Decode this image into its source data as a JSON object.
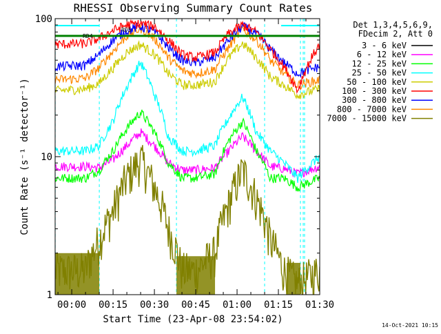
{
  "chart_data": {
    "type": "line",
    "title": "RHESSI Observing Summary Count Rates",
    "xlabel": "Start Time (23-Apr-08 23:54:02)",
    "ylabel": "Count Rate (s⁻¹ detector⁻¹)",
    "yscale": "log",
    "ylim": [
      1,
      100
    ],
    "xlim_minutes": [
      -6.03,
      90
    ],
    "x_tick_labels": [
      "00:00",
      "00:15",
      "00:30",
      "00:45",
      "01:00",
      "01:15",
      "01:30"
    ],
    "y_tick_labels": [
      "1",
      "10",
      "100"
    ],
    "legend_header": [
      "Det 1,3,4,5,6,9,",
      "FDecim 2, Att 0"
    ],
    "legend_placement": "top-right outside plot",
    "grid": false,
    "series": [
      {
        "name": "3 - 6 keV",
        "color": "#000000"
      },
      {
        "name": "6 - 12 keV",
        "color": "#ff00ff"
      },
      {
        "name": "12 - 25 keV",
        "color": "#00ff00"
      },
      {
        "name": "25 - 50 keV",
        "color": "#00ffff"
      },
      {
        "name": "50 - 100 keV",
        "color": "#cccc00"
      },
      {
        "name": "100 - 300 keV",
        "color": "#ff0000"
      },
      {
        "name": "300 - 800 keV",
        "color": "#0000ff"
      },
      {
        "name": "800 - 7000 keV",
        "color": "#ff8800"
      },
      {
        "name": "7000 - 15000 keV",
        "color": "#808000"
      }
    ],
    "profiles": {
      "6 - 12 keV": {
        "x": [
          -6,
          5,
          10,
          15,
          20,
          25,
          30,
          35,
          40,
          45,
          52,
          57,
          62,
          67,
          72,
          77,
          82,
          90
        ],
        "y": [
          8.5,
          8.5,
          8.3,
          9.5,
          12,
          15,
          12,
          9,
          8,
          8,
          8.3,
          11,
          14,
          11,
          8.5,
          8.2,
          7.5,
          8.5
        ]
      },
      "12 - 25 keV": {
        "x": [
          -6,
          5,
          10,
          15,
          20,
          25,
          30,
          35,
          40,
          45,
          52,
          57,
          62,
          67,
          72,
          77,
          82,
          90
        ],
        "y": [
          7,
          7,
          8,
          11,
          16,
          21,
          15,
          9,
          7,
          7,
          7.5,
          13,
          18,
          11,
          7,
          7,
          6,
          7
        ]
      },
      "25 - 50 keV": {
        "x": [
          -6,
          5,
          10,
          15,
          20,
          25,
          30,
          35,
          40,
          45,
          52,
          57,
          62,
          67,
          72,
          77,
          82,
          90
        ],
        "y": [
          11,
          11,
          12,
          18,
          32,
          48,
          28,
          14,
          11,
          11,
          12,
          19,
          27,
          15,
          11,
          9,
          7,
          10
        ]
      },
      "50 - 100 keV": {
        "x": [
          -6,
          5,
          10,
          15,
          20,
          25,
          30,
          35,
          40,
          45,
          52,
          57,
          62,
          67,
          72,
          77,
          82,
          90
        ],
        "y": [
          30,
          31,
          34,
          44,
          57,
          65,
          55,
          40,
          33,
          33,
          35,
          52,
          66,
          52,
          38,
          33,
          28,
          31
        ]
      },
      "100 - 300 keV": {
        "x": [
          -6,
          5,
          10,
          15,
          20,
          25,
          30,
          35,
          40,
          45,
          52,
          57,
          62,
          67,
          72,
          77,
          82,
          90
        ],
        "y": [
          65,
          66,
          72,
          82,
          90,
          92,
          88,
          70,
          55,
          52,
          57,
          78,
          90,
          80,
          60,
          45,
          30,
          65
        ]
      },
      "300 - 800 keV": {
        "x": [
          -6,
          5,
          10,
          15,
          20,
          25,
          30,
          35,
          40,
          45,
          52,
          57,
          62,
          67,
          72,
          77,
          82,
          90
        ],
        "y": [
          45,
          46,
          55,
          70,
          82,
          88,
          80,
          62,
          50,
          48,
          52,
          70,
          88,
          78,
          60,
          48,
          40,
          45
        ]
      },
      "800 - 7000 keV": {
        "x": [
          -6,
          5,
          10,
          15,
          20,
          25,
          30,
          35,
          40,
          45,
          52,
          57,
          62,
          67,
          72,
          77,
          82,
          90
        ],
        "y": [
          36,
          37,
          44,
          58,
          75,
          85,
          72,
          52,
          42,
          40,
          43,
          62,
          84,
          70,
          50,
          40,
          33,
          36
        ]
      },
      "7000 - 15000 keV": {
        "x": [
          -6,
          5,
          10,
          15,
          20,
          25,
          30,
          35,
          40,
          45,
          52,
          57,
          62,
          67,
          72,
          77,
          82,
          90
        ],
        "y": [
          1.5,
          1.5,
          2.5,
          4,
          7,
          9.5,
          6,
          3,
          1.5,
          1.5,
          2,
          4.5,
          8,
          5,
          2.5,
          1.5,
          1.2,
          1.5
        ]
      }
    },
    "green_band": {
      "color": "#008000",
      "value": 75
    },
    "cyan_band": {
      "color": "#00ffff",
      "value": 85
    },
    "annotations": [
      "RD4",
      "RD5"
    ],
    "vertical_markers_minutes": [
      -6,
      10,
      38,
      70,
      83,
      84,
      84.5
    ]
  },
  "footer": {
    "date_stamp": "14-Oct-2021 10:15"
  }
}
